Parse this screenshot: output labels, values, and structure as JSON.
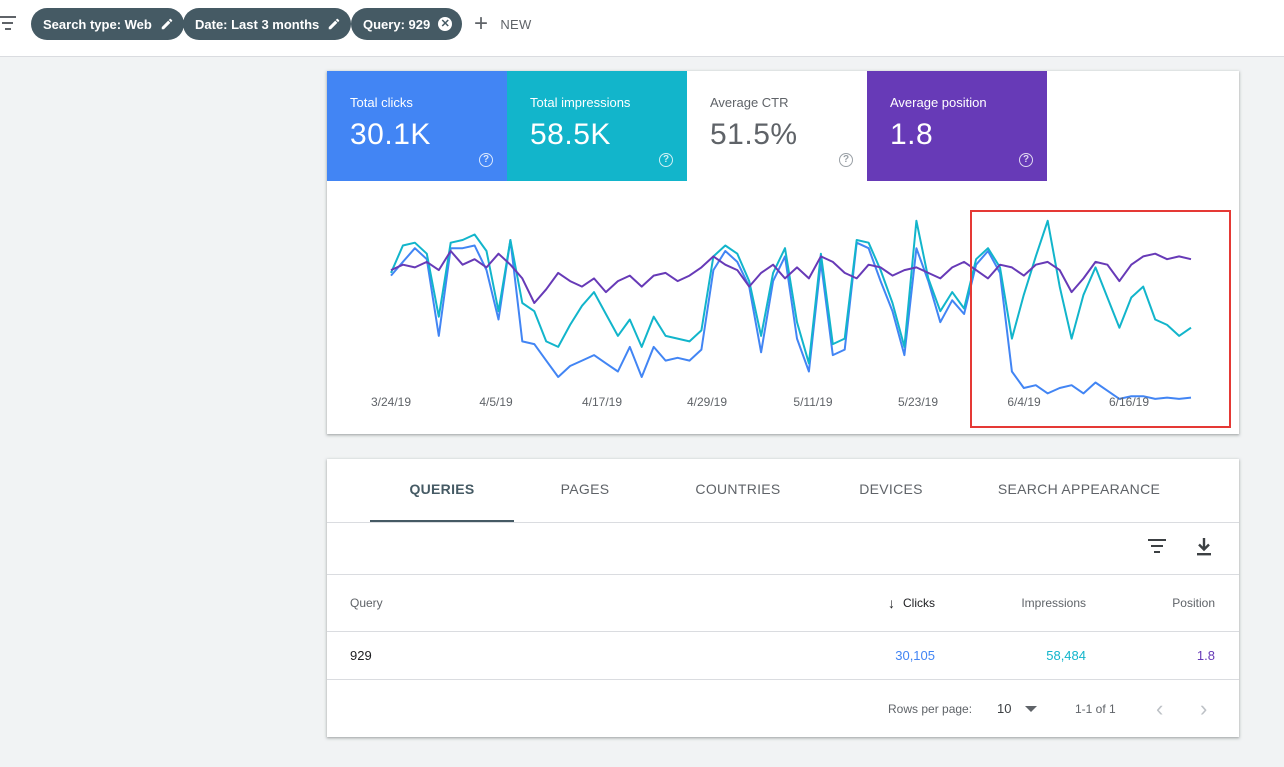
{
  "filters": {
    "chips": [
      {
        "label": "Search type: Web",
        "icon": "pencil-icon"
      },
      {
        "label": "Date: Last 3 months",
        "icon": "pencil-icon"
      },
      {
        "label": "Query: 929",
        "icon": "close-icon"
      }
    ],
    "new_label": "NEW"
  },
  "metrics": {
    "clicks": {
      "label": "Total clicks",
      "value": "30.1K",
      "color": "#4285f4"
    },
    "impressions": {
      "label": "Total impressions",
      "value": "58.5K",
      "color": "#12b5cb"
    },
    "ctr": {
      "label": "Average CTR",
      "value": "51.5%"
    },
    "position": {
      "label": "Average position",
      "value": "1.8",
      "color": "#673ab7"
    },
    "help_glyph": "?"
  },
  "chart_data": {
    "type": "line",
    "x_tick_labels": [
      "3/24/19",
      "4/5/19",
      "4/17/19",
      "4/29/19",
      "5/11/19",
      "5/23/19",
      "6/4/19",
      "6/16/19"
    ],
    "grid": false,
    "legend": "none",
    "annotation": "red rectangle highlighting the period from early June 2019 to the end",
    "series": [
      {
        "color": "#4285f4",
        "values": [
          0.74,
          0.84,
          0.94,
          0.86,
          0.3,
          0.94,
          0.94,
          0.96,
          0.78,
          0.42,
          1.0,
          0.26,
          0.24,
          0.12,
          0.0,
          0.08,
          0.12,
          0.16,
          0.1,
          0.04,
          0.22,
          0.0,
          0.22,
          0.12,
          0.14,
          0.12,
          0.2,
          0.78,
          0.92,
          0.84,
          0.66,
          0.18,
          0.7,
          0.88,
          0.28,
          0.04,
          0.84,
          0.16,
          0.2,
          0.98,
          0.94,
          0.7,
          0.48,
          0.16,
          0.94,
          0.7,
          0.4,
          0.56,
          0.46,
          0.82,
          0.92,
          0.76,
          0.04,
          -0.08,
          -0.06,
          -0.12,
          -0.08,
          -0.06,
          -0.12,
          -0.04,
          -0.1,
          -0.16,
          -0.14,
          -0.14,
          -0.16,
          -0.15,
          -0.16,
          -0.15
        ]
      },
      {
        "color": "#12b5cb",
        "values": [
          0.76,
          0.96,
          0.98,
          0.9,
          0.44,
          0.98,
          1.0,
          1.04,
          0.92,
          0.48,
          1.0,
          0.54,
          0.48,
          0.26,
          0.22,
          0.38,
          0.52,
          0.62,
          0.46,
          0.3,
          0.42,
          0.22,
          0.44,
          0.3,
          0.28,
          0.26,
          0.34,
          0.88,
          0.96,
          0.9,
          0.7,
          0.3,
          0.76,
          0.94,
          0.4,
          0.1,
          0.9,
          0.24,
          0.28,
          1.0,
          0.98,
          0.78,
          0.54,
          0.22,
          1.14,
          0.72,
          0.48,
          0.62,
          0.5,
          0.86,
          0.94,
          0.8,
          0.28,
          0.6,
          0.88,
          1.14,
          0.66,
          0.28,
          0.6,
          0.8,
          0.58,
          0.36,
          0.58,
          0.66,
          0.42,
          0.38,
          0.3,
          0.36
        ]
      },
      {
        "color": "#673ab7",
        "values": [
          0.78,
          0.82,
          0.8,
          0.84,
          0.78,
          0.92,
          0.82,
          0.86,
          0.8,
          0.9,
          0.82,
          0.72,
          0.54,
          0.64,
          0.76,
          0.7,
          0.66,
          0.72,
          0.62,
          0.7,
          0.74,
          0.66,
          0.74,
          0.76,
          0.7,
          0.74,
          0.8,
          0.88,
          0.82,
          0.78,
          0.66,
          0.76,
          0.82,
          0.72,
          0.8,
          0.72,
          0.88,
          0.84,
          0.76,
          0.72,
          0.82,
          0.8,
          0.74,
          0.78,
          0.8,
          0.76,
          0.72,
          0.8,
          0.84,
          0.78,
          0.72,
          0.82,
          0.8,
          0.74,
          0.82,
          0.84,
          0.78,
          0.62,
          0.72,
          0.84,
          0.82,
          0.7,
          0.82,
          0.88,
          0.9,
          0.86,
          0.88,
          0.86
        ]
      }
    ]
  },
  "table": {
    "tabs": [
      "QUERIES",
      "PAGES",
      "COUNTRIES",
      "DEVICES",
      "SEARCH APPEARANCE"
    ],
    "active_tab": 0,
    "columns": {
      "query": "Query",
      "clicks": "Clicks",
      "impressions": "Impressions",
      "position": "Position"
    },
    "sort_arrow": "↓",
    "rows": [
      {
        "query": "929",
        "clicks": "30,105",
        "impressions": "58,484",
        "position": "1.8"
      }
    ],
    "pagination": {
      "rows_per_page_label": "Rows per page:",
      "rows_per_page": "10",
      "range": "1-1 of 1"
    }
  }
}
